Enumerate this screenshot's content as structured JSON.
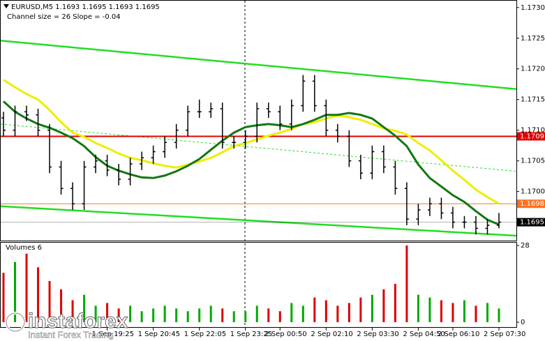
{
  "chart_data": {
    "type": "candlestick",
    "title": "EURUSD,M5  1.1693 1.1695 1.1693 1.1695",
    "subtitle": "Channel size = 26 Slope = -0.04",
    "color": "#000000",
    "categories": [
      null,
      null,
      null,
      null,
      null,
      null,
      null,
      null,
      null,
      "1 Sep 19:25",
      null,
      null,
      null,
      "1 Sep 20:45",
      null,
      null,
      null,
      "1 Sep 22:05",
      null,
      null,
      null,
      "1 Sep 23:25",
      null,
      null,
      "2 Sep 00:50",
      null,
      null,
      null,
      "2 Sep 02:10",
      null,
      null,
      null,
      "2 Sep 03:30",
      null,
      null,
      null,
      "2 Sep 04:50",
      null,
      null,
      "2 Sep 06:10",
      null,
      null,
      null,
      "2 Sep 07:30"
    ],
    "open": [
      1.1712,
      1.171,
      1.1713,
      1.17125,
      1.171,
      1.1704,
      1.17005,
      1.1698,
      1.1704,
      1.1705,
      1.17035,
      1.1702,
      1.17045,
      1.17055,
      1.17065,
      1.1708,
      1.171,
      1.1713,
      1.1713,
      1.17135,
      1.1708,
      1.1708,
      1.1709,
      1.17135,
      1.1713,
      1.1711,
      1.1714,
      1.1718,
      1.1714,
      1.171,
      1.1709,
      1.1705,
      1.1703,
      1.17065,
      1.1704,
      1.17005,
      1.16955,
      1.1697,
      1.1698,
      1.16965,
      1.1695,
      1.1695,
      1.1694,
      1.16945
    ],
    "high": [
      1.1713,
      1.1714,
      1.1714,
      1.17135,
      1.1711,
      1.1705,
      1.17015,
      1.1705,
      1.1706,
      1.1706,
      1.17045,
      1.17055,
      1.17065,
      1.17075,
      1.1709,
      1.1711,
      1.1714,
      1.1715,
      1.17145,
      1.17145,
      1.1709,
      1.171,
      1.17145,
      1.17145,
      1.1714,
      1.1715,
      1.1719,
      1.1719,
      1.1715,
      1.1711,
      1.171,
      1.1706,
      1.17075,
      1.17075,
      1.1705,
      1.17015,
      1.1698,
      1.1699,
      1.1699,
      1.16975,
      1.1696,
      1.1696,
      1.16955,
      1.16965
    ],
    "low": [
      1.1709,
      1.1709,
      1.17115,
      1.1709,
      1.1703,
      1.16995,
      1.1697,
      1.1697,
      1.1703,
      1.17025,
      1.1701,
      1.1701,
      1.17035,
      1.17045,
      1.17055,
      1.1707,
      1.1709,
      1.1712,
      1.1712,
      1.1707,
      1.1707,
      1.1707,
      1.1708,
      1.1712,
      1.171,
      1.171,
      1.1713,
      1.1713,
      1.1709,
      1.1708,
      1.1704,
      1.1702,
      1.1702,
      1.1703,
      1.16995,
      1.16945,
      1.16945,
      1.1696,
      1.16955,
      1.1694,
      1.1694,
      1.1693,
      1.1693,
      1.1694
    ],
    "close": [
      1.171,
      1.1713,
      1.17125,
      1.171,
      1.1704,
      1.17005,
      1.1698,
      1.1704,
      1.1705,
      1.17035,
      1.1702,
      1.17045,
      1.17055,
      1.17065,
      1.1708,
      1.171,
      1.1713,
      1.1713,
      1.17135,
      1.1708,
      1.1708,
      1.1709,
      1.17135,
      1.1713,
      1.1711,
      1.1714,
      1.1718,
      1.1714,
      1.171,
      1.1709,
      1.1705,
      1.1703,
      1.17065,
      1.1704,
      1.17005,
      1.16955,
      1.1697,
      1.1698,
      1.16965,
      1.1695,
      1.1695,
      1.1694,
      1.16945,
      1.1695
    ],
    "ylim": [
      1.1692,
      1.1731
    ],
    "yticks": [
      {
        "value": 1.173,
        "label": "1.1730"
      },
      1.1725,
      {
        "value": 1.172,
        "label": "1.1720"
      },
      1.1715,
      {
        "value": 1.171,
        "label": "1.1710"
      },
      1.1705,
      {
        "value": 1.17,
        "label": "1.1700"
      },
      1.1695
    ],
    "moving_averages": [
      {
        "color": "#eeee00",
        "values": [
          1.17182,
          1.1717,
          1.17159,
          1.1715,
          1.17133,
          1.17113,
          1.17096,
          1.17089,
          1.17079,
          1.17071,
          1.17062,
          1.17055,
          1.17051,
          1.17046,
          1.17042,
          1.17039,
          1.17044,
          1.17049,
          1.17055,
          1.17064,
          1.17074,
          1.17079,
          1.17085,
          1.17091,
          1.17096,
          1.17102,
          1.1711,
          1.17113,
          1.17119,
          1.17124,
          1.17121,
          1.17117,
          1.1711,
          1.17103,
          1.17099,
          1.17093,
          1.17079,
          1.17067,
          1.17051,
          1.17034,
          1.17019,
          1.17003,
          1.16991,
          1.1698
        ]
      },
      {
        "color": "#117711",
        "values": [
          1.17147,
          1.1713,
          1.17119,
          1.1711,
          1.17104,
          1.17096,
          1.17087,
          1.17074,
          1.17056,
          1.17042,
          1.17034,
          1.17028,
          1.17023,
          1.17022,
          1.17026,
          1.17033,
          1.17042,
          1.17053,
          1.17068,
          1.17083,
          1.17096,
          1.17105,
          1.17108,
          1.1711,
          1.17108,
          1.17105,
          1.1711,
          1.17117,
          1.17125,
          1.17125,
          1.17128,
          1.17125,
          1.17119,
          1.17105,
          1.17091,
          1.17074,
          1.17044,
          1.17022,
          1.17008,
          1.16994,
          1.16983,
          1.16968,
          1.16954,
          1.16946
        ]
      }
    ],
    "channel": {
      "color": "#22dd22",
      "upper": [
        1.17246,
        1.17167
      ],
      "middle": [
        1.1711,
        1.17033
      ],
      "lower": [
        1.16976,
        1.16928
      ]
    },
    "levels": [
      {
        "value": 1.1709,
        "color": "#e00000"
      },
      {
        "value": 1.1698,
        "color": "#ff7020"
      },
      {
        "value": 1.1695,
        "color": "#000000"
      }
    ],
    "volume": {
      "title": "Volumes 6",
      "ylim": [
        0,
        28
      ],
      "yticks": [
        28,
        0
      ],
      "up_color": "#00aa00",
      "down_color": "#dd0000",
      "values": [
        18,
        22,
        25,
        20,
        15,
        12,
        8,
        10,
        6,
        7,
        5,
        6,
        4,
        5,
        6,
        5,
        4,
        5,
        6,
        5,
        4,
        4,
        6,
        5,
        4,
        7,
        6,
        9,
        8,
        6,
        7,
        9,
        10,
        12,
        14,
        28,
        10,
        9,
        8,
        7,
        8,
        6,
        7,
        5
      ]
    },
    "watermark": {
      "brand": "instaforex",
      "tagline": "Instant Forex Trading"
    }
  }
}
